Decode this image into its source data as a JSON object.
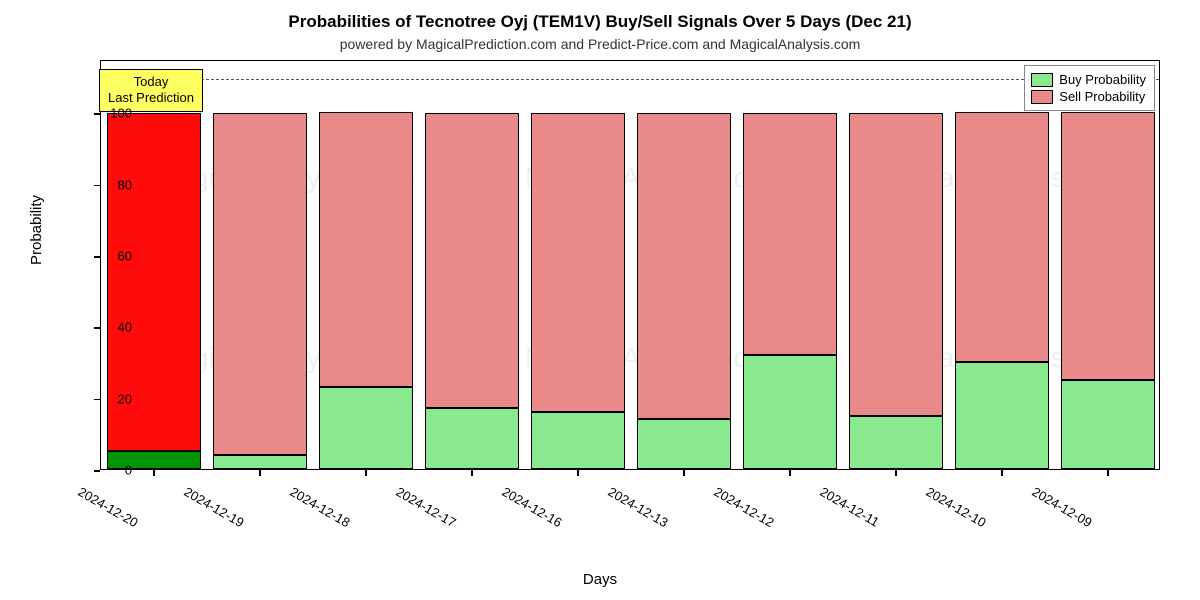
{
  "title": "Probabilities of Tecnotree Oyj (TEM1V) Buy/Sell Signals Over 5 Days (Dec 21)",
  "subtitle": "powered by MagicalPrediction.com and Predict-Price.com and MagicalAnalysis.com",
  "xlabel": "Days",
  "ylabel": "Probability",
  "chart": {
    "type": "stacked-bar",
    "ylim": [
      0,
      115
    ],
    "yticks": [
      0,
      20,
      40,
      60,
      80,
      100
    ],
    "dash_line_value": 110,
    "bar_width": 0.88,
    "background_color": "#ffffff",
    "border_color": "#000000",
    "dash_color": "#555555",
    "categories": [
      "2024-12-20",
      "2024-12-19",
      "2024-12-18",
      "2024-12-17",
      "2024-12-16",
      "2024-12-13",
      "2024-12-12",
      "2024-12-11",
      "2024-12-10",
      "2024-12-09"
    ],
    "buy_values": [
      5,
      4,
      23,
      17,
      16,
      14,
      32,
      15,
      30,
      25
    ],
    "sell_values": [
      95,
      96,
      77,
      83,
      84,
      86,
      68,
      85,
      70,
      75
    ],
    "today_index": 0,
    "buy_colors": [
      "#009400",
      "#8ae98e",
      "#8ae98e",
      "#8ae98e",
      "#8ae98e",
      "#8ae98e",
      "#8ae98e",
      "#8ae98e",
      "#8ae98e",
      "#8ae98e"
    ],
    "sell_colors": [
      "#ff0b0b",
      "#e98989",
      "#e98989",
      "#e98989",
      "#e98989",
      "#e98989",
      "#e98989",
      "#e98989",
      "#e98989",
      "#e98989"
    ]
  },
  "legend": {
    "buy_label": "Buy Probability",
    "sell_label": "Sell Probability",
    "buy_swatch": "#8ae98e",
    "sell_swatch": "#e98989"
  },
  "today_box": {
    "line1": "Today",
    "line2": "Last Prediction",
    "background": "#feff60"
  },
  "watermark_text": "MagicalAnalysis.com",
  "fonts": {
    "title_size": 17,
    "subtitle_size": 14,
    "axis_label_size": 15,
    "tick_label_size": 13,
    "legend_size": 13
  }
}
